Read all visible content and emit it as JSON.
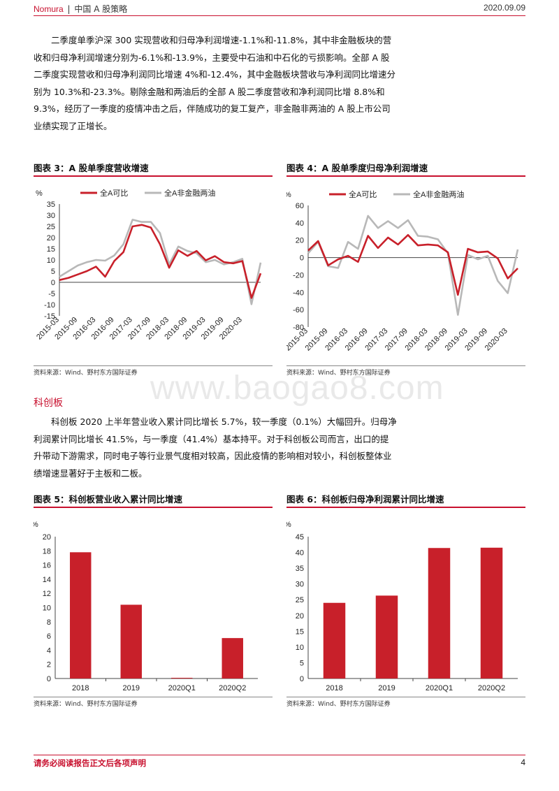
{
  "header": {
    "brand": "Nomura",
    "sep": "|",
    "section": "中国 A 股策略",
    "date": "2020.09.09"
  },
  "para1": "二季度单季沪深 300 实现营收和归母净利润增速-1.1%和-11.8%，其中非金融板块的营收和归母净利润增速分别为-6.1%和-13.9%，主要受中石油和中石化的亏损影响。全部 A 股二季度实现营收和归母净利润同比增速 4%和-12.4%，其中金融板块营收与净利润同比增速分别为 10.3%和-23.3%。剔除金融和两油后的全部 A 股二季度营收和净利润同比增 8.8%和 9.3%，经历了一季度的疫情冲击之后，伴随成功的复工复产，非金融非两油的 A 股上市公司业绩实现了正增长。",
  "section_heading": "科创板",
  "para2": "科创板 2020 上半年营业收入累计同比增长 5.7%，较一季度（0.1%）大幅回升。归母净利润累计同比增长 41.5%，与一季度（41.4%）基本持平。对于科创板公司而言，出口的提升带动下游需求，同时电子等行业景气度相对较高，因此疫情的影响相对较小，科创板整体业绩增速显著好于主板和二板。",
  "watermark": "www.baogao8.com",
  "footer": {
    "disclaimer": "请务必阅读报告正文后各项声明",
    "page": "4"
  },
  "colors": {
    "accent": "#c8102e",
    "series_red": "#c8202a",
    "series_gray": "#b8b8b8"
  },
  "chart_data": [
    {
      "id": "fig3",
      "type": "line",
      "title": "图表 3：A 股单季度营收增速",
      "unit": "%",
      "source": "资料来源：Wind、野村东方国际证券",
      "ylim": [
        -15,
        35
      ],
      "yticks": [
        -15,
        -10,
        -5,
        0,
        5,
        10,
        15,
        20,
        25,
        30,
        35
      ],
      "xtick_labels": [
        "2015-03",
        "2015-09",
        "2016-03",
        "2016-09",
        "2017-03",
        "2017-09",
        "2018-03",
        "2018-09",
        "2019-03",
        "2019-09",
        "2020-03"
      ],
      "series": [
        {
          "name": "全A可比",
          "values": [
            1,
            2,
            3.5,
            5,
            7,
            2.5,
            9.5,
            13.5,
            25,
            25.7,
            24.5,
            17,
            6.5,
            14.3,
            11.8,
            14,
            9.8,
            11.7,
            9,
            8.5,
            9.5,
            -7,
            4
          ]
        },
        {
          "name": "全A非金融两油",
          "values": [
            2.5,
            5,
            7.5,
            9,
            10,
            9.7,
            12,
            17,
            28,
            27,
            27,
            22,
            8,
            16,
            14,
            13,
            9,
            10,
            8,
            9,
            10.5,
            -9.8,
            8.8
          ]
        }
      ]
    },
    {
      "id": "fig4",
      "type": "line",
      "title": "图表 4：A 股单季度归母净利润增速",
      "unit": "%",
      "source": "资料来源：Wind、野村东方国际证券",
      "ylim": [
        -80,
        60
      ],
      "yticks": [
        -80,
        -60,
        -40,
        -20,
        0,
        20,
        40,
        60
      ],
      "xtick_labels": [
        "2015-03",
        "2015-09",
        "2016-03",
        "2016-09",
        "2017-03",
        "2017-09",
        "2018-03",
        "2018-09",
        "2019-03",
        "2019-09",
        "2020-03"
      ],
      "series": [
        {
          "name": "全A可比",
          "values": [
            8,
            19,
            -9,
            -2,
            2,
            -5,
            25,
            11,
            23,
            15,
            26,
            14,
            15,
            14,
            6,
            -43,
            10,
            6,
            7,
            -1,
            -24,
            -12.4
          ]
        },
        {
          "name": "全A非金融两油",
          "values": [
            5,
            18,
            -10,
            -12,
            18,
            10,
            48,
            34,
            42,
            34,
            43,
            25,
            24,
            21,
            5,
            -66,
            3,
            -2,
            2,
            -27,
            -41,
            9.3
          ]
        }
      ]
    },
    {
      "id": "fig5",
      "type": "bar",
      "title": "图表 5：科创板营业收入累计同比增速",
      "unit": "%",
      "source": "资料来源：Wind、野村东方国际证券",
      "categories": [
        "2018",
        "2019",
        "2020Q1",
        "2020Q2"
      ],
      "values": [
        17.8,
        10.4,
        0.1,
        5.7
      ],
      "ylim": [
        0,
        20
      ],
      "yticks": [
        0,
        2,
        4,
        6,
        8,
        10,
        12,
        14,
        16,
        18,
        20
      ]
    },
    {
      "id": "fig6",
      "type": "bar",
      "title": "图表 6：科创板归母净利润累计同比增速",
      "unit": "%",
      "source": "资料来源：Wind、野村东方国际证券",
      "categories": [
        "2018",
        "2019",
        "2020Q1",
        "2020Q2"
      ],
      "values": [
        24,
        26.3,
        41.4,
        41.5
      ],
      "ylim": [
        0,
        45
      ],
      "yticks": [
        0,
        5,
        10,
        15,
        20,
        25,
        30,
        35,
        40,
        45
      ]
    }
  ]
}
